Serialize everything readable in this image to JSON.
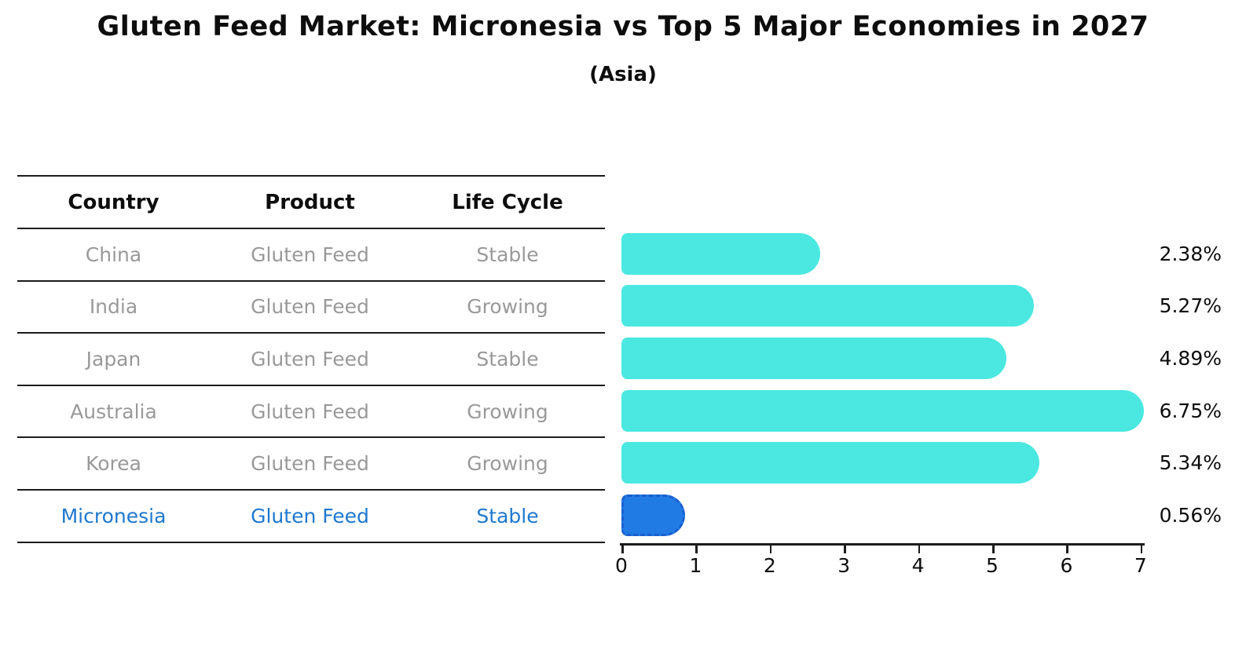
{
  "title": "Gluten Feed Market: Micronesia vs Top 5 Major Economies in 2027",
  "subtitle": "(Asia)",
  "table": {
    "headers": [
      "Country",
      "Product",
      "Life Cycle"
    ],
    "rows": [
      {
        "country": "China",
        "product": "Gluten Feed",
        "life_cycle": "Stable",
        "highlight": false
      },
      {
        "country": "India",
        "product": "Gluten Feed",
        "life_cycle": "Growing",
        "highlight": false
      },
      {
        "country": "Japan",
        "product": "Gluten Feed",
        "life_cycle": "Stable",
        "highlight": false
      },
      {
        "country": "Australia",
        "product": "Gluten Feed",
        "life_cycle": "Growing",
        "highlight": false
      },
      {
        "country": "Korea",
        "product": "Gluten Feed",
        "life_cycle": "Growing",
        "highlight": false
      },
      {
        "country": "Micronesia",
        "product": "Gluten Feed",
        "life_cycle": "Stable",
        "highlight": true
      }
    ]
  },
  "chart_data": {
    "type": "bar",
    "orientation": "horizontal",
    "categories": [
      "China",
      "India",
      "Japan",
      "Australia",
      "Korea",
      "Micronesia"
    ],
    "values": [
      2.38,
      5.27,
      4.89,
      6.75,
      5.34,
      0.56
    ],
    "value_labels": [
      "2.38%",
      "5.27%",
      "4.89%",
      "6.75%",
      "5.34%",
      "0.56%"
    ],
    "title": "Gluten Feed Market: Micronesia vs Top 5 Major Economies in 2027",
    "subtitle": "(Asia)",
    "xlabel": "",
    "ylabel": "",
    "xlim": [
      0,
      7
    ],
    "x_ticks": [
      0,
      1,
      2,
      3,
      4,
      5,
      6,
      7
    ],
    "grid": false,
    "legend": false,
    "bar_color": "#4ae8e1",
    "highlight_color": "#217be4",
    "highlight_border_color": "#1a5fd0",
    "highlight_index": 5,
    "highlight_text_color": "#1e78d0"
  }
}
